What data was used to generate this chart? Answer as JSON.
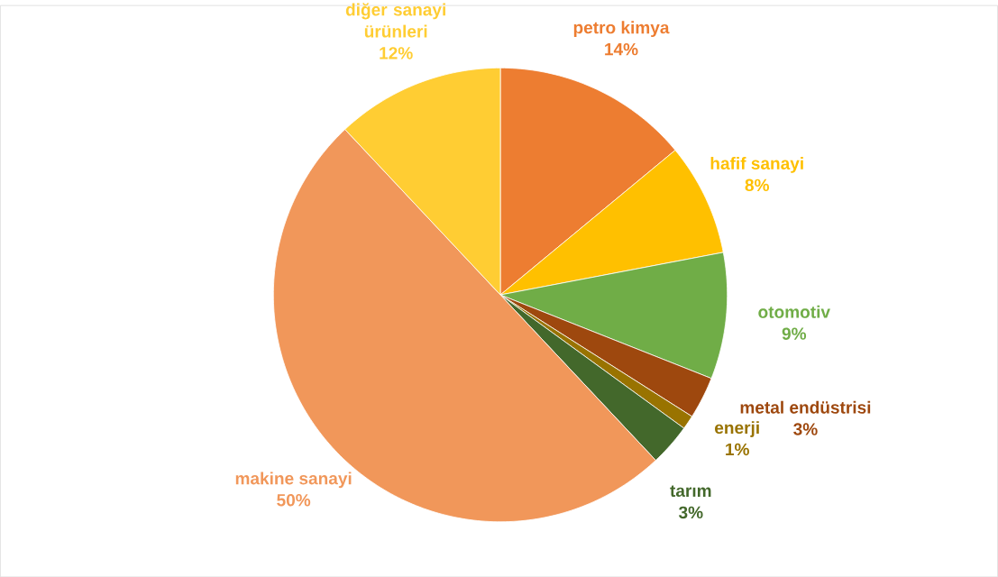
{
  "chart_data": {
    "type": "pie",
    "categories": [
      "petro kimya",
      "hafif sanayi",
      "otomotiv",
      "metal endüstrisi",
      "enerji",
      "tarım",
      "makine sanayi",
      "diğer sanayi ürünleri"
    ],
    "values": [
      14,
      8,
      9,
      3,
      1,
      3,
      50,
      12
    ],
    "value_labels": [
      "14%",
      "8%",
      "9%",
      "3%",
      "1%",
      "3%",
      "50%",
      "12%"
    ],
    "colors": [
      "#ed7d31",
      "#ffc000",
      "#70ad47",
      "#9e480e",
      "#997300",
      "#43682b",
      "#f1975a",
      "#ffcd33"
    ]
  }
}
